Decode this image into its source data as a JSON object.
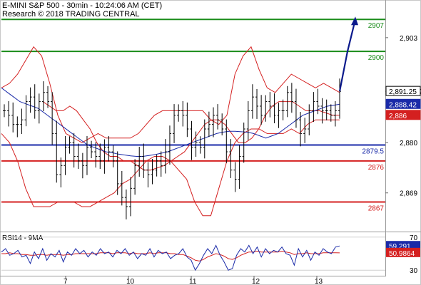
{
  "header": {
    "title": "E-MINI S&P 500 - 30min - 10:24:06 AM (CET)",
    "copyright": "Research © 2018 TRADING CENTRAL"
  },
  "chart_data": {
    "type": "line",
    "instrument": "E-MINI S&P 500",
    "timeframe": "30min",
    "price_axis": {
      "ylim": [
        2861,
        2910
      ],
      "ticks": [
        2903,
        2891.25,
        2880,
        2869
      ]
    },
    "x_ticks": [
      "7",
      "10",
      "11",
      "12",
      "13"
    ],
    "levels": [
      {
        "value": 2907,
        "label": "2907",
        "color": "#1a8c1a"
      },
      {
        "value": 2900,
        "label": "2900",
        "color": "#1a8c1a"
      },
      {
        "value": 2879.5,
        "label": "2879.5",
        "color": "#1a2aa8"
      },
      {
        "value": 2876,
        "label": "2876",
        "color": "#d42020"
      },
      {
        "value": 2867,
        "label": "2867",
        "color": "#d42020"
      }
    ],
    "price_badges": [
      {
        "value": 2891.25,
        "label": "2,891.25",
        "bg": "#ffffff",
        "fg": "#000000"
      },
      {
        "value": 2888.42,
        "label": "2,888.42",
        "bg": "#1a2aa8",
        "fg": "#ffffff"
      },
      {
        "value": 2886,
        "label": "2,886",
        "bg": "#d42020",
        "fg": "#ffffff"
      }
    ],
    "price_series": [
      2887,
      2886,
      2884,
      2884,
      2885,
      2889,
      2890,
      2887,
      2889,
      2891,
      2889,
      2882,
      2873,
      2875,
      2879,
      2880,
      2877,
      2876,
      2875,
      2879,
      2878,
      2877,
      2876,
      2879,
      2878,
      2876,
      2871,
      2868,
      2866,
      2870,
      2875,
      2877,
      2874,
      2873,
      2874,
      2876,
      2875,
      2878,
      2882,
      2886,
      2887,
      2886,
      2883,
      2879,
      2880,
      2879,
      2883,
      2884,
      2886,
      2885,
      2883,
      2878,
      2874,
      2872,
      2877,
      2883,
      2887,
      2890,
      2888,
      2886,
      2889,
      2888,
      2886,
      2887,
      2887,
      2891,
      2889,
      2885,
      2882,
      2883,
      2887,
      2889,
      2888,
      2887,
      2887,
      2886,
      2887,
      2891.25
    ],
    "ma_blue": [
      2892,
      2891,
      2890,
      2889,
      2888.5,
      2888,
      2887.5,
      2886.5,
      2885.5,
      2884.5,
      2883.5,
      2882.5,
      2881.5,
      2880.5,
      2879.5,
      2879,
      2878.5,
      2878,
      2877.8,
      2877.5,
      2877.3,
      2877.1,
      2877,
      2877,
      2877.2,
      2877.4,
      2877.7,
      2878,
      2878.5,
      2879,
      2879.5,
      2880,
      2880.5,
      2881,
      2881.5,
      2882,
      2882.3,
      2882.5,
      2882.5,
      2882.4,
      2882.3,
      2882,
      2881.5,
      2881,
      2881.5,
      2882,
      2883,
      2884,
      2885,
      2886,
      2886.5,
      2887,
      2887.5,
      2888,
      2888.2,
      2888.42
    ],
    "ma_red": [
      2889,
      2888,
      2887,
      2887,
      2888,
      2887,
      2885,
      2883,
      2880,
      2878,
      2877,
      2877,
      2876,
      2876,
      2875,
      2874,
      2874,
      2874.5,
      2875,
      2876,
      2877,
      2878,
      2880,
      2882,
      2884,
      2885,
      2885,
      2884,
      2882,
      2880,
      2880,
      2881,
      2883,
      2886,
      2888,
      2889,
      2889,
      2889,
      2888,
      2887,
      2887,
      2887,
      2886.5,
      2886,
      2886
    ],
    "bollinger_upper": [
      2892,
      2893,
      2895,
      2898,
      2901,
      2899,
      2893,
      2886,
      2882,
      2881,
      2880,
      2881,
      2882,
      2881,
      2881,
      2881,
      2881,
      2882,
      2884,
      2886,
      2887,
      2887,
      2887,
      2887,
      2887,
      2887,
      2885,
      2884,
      2886,
      2895,
      2899,
      2901,
      2896,
      2892,
      2891,
      2893,
      2895,
      2894,
      2893,
      2892,
      2893,
      2892,
      2891
    ],
    "bollinger_lower": [
      2882,
      2880,
      2876,
      2870,
      2866,
      2866,
      2866,
      2867,
      2867,
      2867,
      2866,
      2866,
      2867,
      2868,
      2869,
      2871,
      2872,
      2874,
      2876,
      2877,
      2877,
      2876,
      2874,
      2872,
      2867,
      2864,
      2864,
      2870,
      2876,
      2880,
      2882,
      2883,
      2883,
      2882,
      2882,
      2882,
      2883,
      2882,
      2884,
      2885,
      2885,
      2885,
      2885
    ],
    "forecast": [
      2891.25,
      2900,
      2907
    ],
    "rsi": {
      "title": "RSI14 - 9MA",
      "ylim": [
        25,
        75
      ],
      "ticks": [
        70,
        30
      ],
      "rsi_value": 59.291,
      "rsi_label": "59.291",
      "ma_value": 50.9864,
      "ma_label": "50.9864",
      "rsi_series": [
        52,
        56,
        48,
        50,
        54,
        46,
        48,
        38,
        52,
        44,
        56,
        42,
        50,
        46,
        54,
        40,
        52,
        48,
        56,
        50,
        54,
        46,
        52,
        48,
        56,
        50,
        52,
        46,
        54,
        50,
        56,
        48,
        52,
        44,
        50,
        48,
        56,
        46,
        54,
        50,
        52,
        44,
        48,
        50,
        56,
        46,
        42,
        30,
        38,
        48,
        56,
        50,
        60,
        48,
        40,
        30,
        32,
        48,
        56,
        52,
        60,
        50,
        58,
        46,
        56,
        50,
        54,
        52,
        58,
        50,
        48,
        36,
        56,
        46,
        54,
        42,
        52,
        48,
        56,
        52,
        50,
        58,
        59.291
      ],
      "ma_series": [
        50,
        50,
        51,
        50,
        50,
        49,
        49,
        48,
        48,
        49,
        49,
        48,
        49,
        49,
        49,
        48,
        49,
        49,
        50,
        50,
        50,
        50,
        50,
        50,
        51,
        51,
        51,
        50,
        51,
        51,
        51,
        50,
        51,
        50,
        50,
        50,
        51,
        50,
        51,
        51,
        51,
        50,
        50,
        49,
        49,
        47,
        45,
        42,
        41,
        43,
        46,
        48,
        50,
        49,
        47,
        44,
        43,
        45,
        48,
        50,
        52,
        52,
        53,
        52,
        52,
        52,
        52,
        52,
        53,
        52,
        51,
        49,
        50,
        50,
        51,
        50,
        50,
        50,
        51,
        51,
        51,
        51,
        50.9864
      ]
    },
    "colors": {
      "price": "#000000",
      "ma_blue": "#1a2aa8",
      "ma_red": "#d42020",
      "bollinger": "#d42020",
      "forecast": "#0b1a8c",
      "green_level": "#1a8c1a"
    }
  }
}
